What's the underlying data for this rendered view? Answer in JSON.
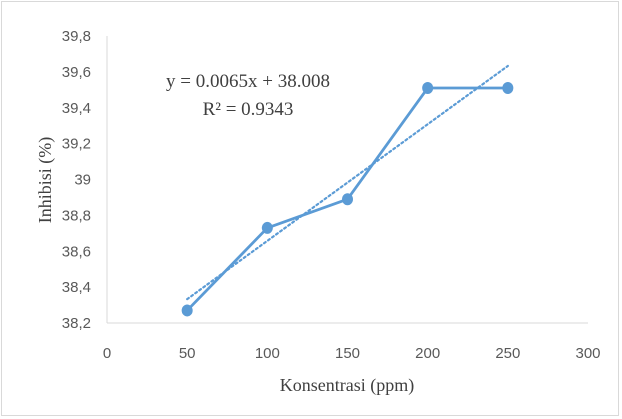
{
  "chart_data": {
    "type": "line",
    "xlabel": "Konsentrasi (ppm)",
    "ylabel": "Inhibisi  (%)",
    "xlim": [
      0,
      300
    ],
    "ylim": [
      38.2,
      39.8
    ],
    "x_ticks": [
      "0",
      "50",
      "100",
      "150",
      "200",
      "250",
      "300"
    ],
    "y_ticks": [
      "38,2",
      "38,4",
      "38,6",
      "38,8",
      "39",
      "39,2",
      "39,4",
      "39,6",
      "39,8"
    ],
    "x_tick_values": [
      0,
      50,
      100,
      150,
      200,
      250,
      300
    ],
    "y_tick_values": [
      38.2,
      38.4,
      38.6,
      38.8,
      39.0,
      39.2,
      39.4,
      39.6,
      39.8
    ],
    "series": [
      {
        "x": [
          50,
          100,
          150,
          200,
          250
        ],
        "values": [
          38.27,
          38.73,
          38.89,
          39.51,
          39.51
        ],
        "color": "#5b9bd5"
      }
    ],
    "trendline": {
      "type": "linear",
      "slope": 0.0065,
      "intercept": 38.008,
      "x_range": [
        50,
        250
      ],
      "style": "dotted",
      "color": "#5b9bd5"
    },
    "equation": "y = 0.0065x + 38.008",
    "r_squared": "R² = 0.9343",
    "grid": false,
    "legend": "none"
  }
}
